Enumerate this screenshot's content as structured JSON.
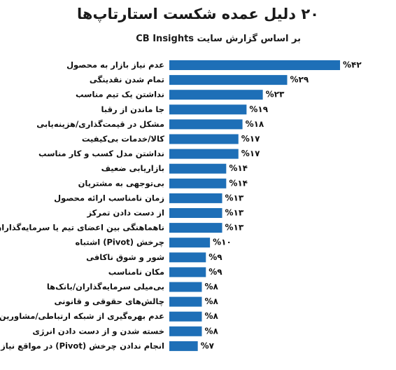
{
  "chart_data": {
    "type": "bar",
    "orientation": "horizontal",
    "title": "۲۰ دلیل عمده شکست استارتاپ‌ها",
    "subtitle": "بر اساس گزارش سایت CB Insights",
    "xlim": [
      0,
      42
    ],
    "grid": false,
    "bar_color": "#1e6fb7",
    "categories": [
      "عدم نیاز بازار به محصول",
      "تمام شدن نقدینگی",
      "نداشتن یک تیم مناسب",
      "جا ماندن از رقبا",
      "مشکل در قیمت‌گذاری/هزینه‌یابی",
      "کالا/خدمات بی‌کیفیت",
      "نداشتن مدل کسب و کار مناسب",
      "بازاریابی ضعیف",
      "بی‌توجهی به مشتریان",
      "زمان نامناسب ارائه محصول",
      "از دست دادن تمرکز",
      "ناهماهنگی بین اعضای تیم یا سرمایه‌گذاران",
      "چرخش (Pivot) اشتباه",
      "شور و شوق ناکافی",
      "مکان نامناسب",
      "بی‌میلی سرمایه‌گذاران/بانک‌ها",
      "چالش‌های حقوقی و قانونی",
      "عدم بهره‌گیری از شبکه ارتباطی/مشاورین",
      "خسته شدن و از دست دادن انرژی",
      "انجام ندادن چرخش (Pivot) در مواقع نیاز"
    ],
    "values": [
      42,
      29,
      23,
      19,
      18,
      17,
      17,
      14,
      14,
      13,
      13,
      13,
      10,
      9,
      9,
      8,
      8,
      8,
      8,
      7
    ],
    "value_labels": [
      "%۴۲",
      "%۲۹",
      "%۲۳",
      "%۱۹",
      "%۱۸",
      "%۱۷",
      "%۱۷",
      "%۱۴",
      "%۱۴",
      "%۱۳",
      "%۱۳",
      "%۱۳",
      "%۱۰",
      "%۹",
      "%۹",
      "%۸",
      "%۸",
      "%۸",
      "%۸",
      "%۷"
    ]
  }
}
